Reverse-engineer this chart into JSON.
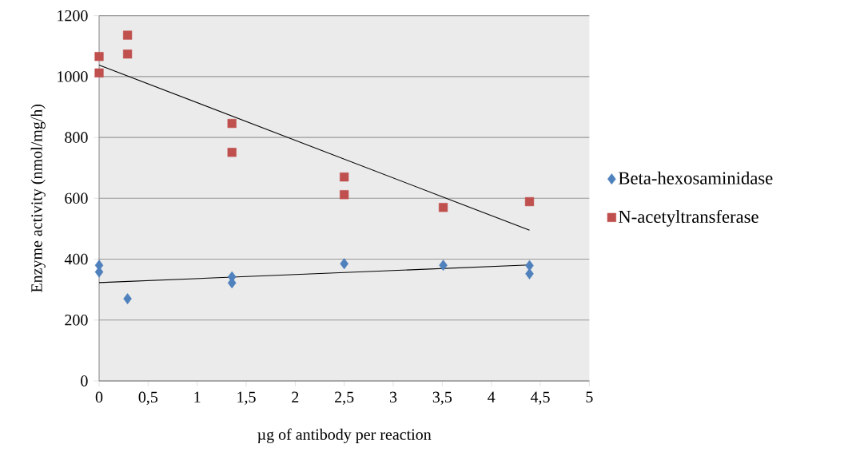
{
  "chart_data": {
    "type": "scatter",
    "xlabel": "µg of antibody per reaction",
    "ylabel": "Enzyme activity (nmol/mg/h)",
    "xlim": [
      0,
      5
    ],
    "ylim": [
      0,
      1200
    ],
    "xticks": [
      0,
      {
        "value": 0.5,
        "label": "0,5"
      },
      1,
      {
        "value": 1.5,
        "label": "1,5"
      },
      2,
      {
        "value": 2.5,
        "label": "2,5"
      },
      3,
      {
        "value": 3.5,
        "label": "3,5"
      },
      4,
      {
        "value": 4.5,
        "label": "4,5"
      },
      5
    ],
    "yticks": [
      0,
      200,
      400,
      600,
      800,
      1000,
      1200
    ],
    "grid": "y",
    "legend": "right",
    "series": [
      {
        "name": "Beta-hexosaminidase",
        "color": "#4f81bd",
        "marker": "diamond",
        "x": [
          0,
          0,
          0.29,
          1.355,
          1.355,
          2.5,
          3.51,
          4.39,
          4.39
        ],
        "values": [
          380,
          358,
          270,
          342,
          322,
          385,
          380,
          379,
          352
        ]
      },
      {
        "name": "N-acetyltransferase",
        "color": "#c0504d",
        "marker": "square",
        "x": [
          0,
          0,
          0.29,
          0.29,
          1.355,
          1.355,
          2.5,
          2.5,
          3.51,
          4.39
        ],
        "values": [
          1066,
          1012,
          1136,
          1074,
          846,
          751,
          670,
          612,
          570,
          589
        ]
      },
      {
        "type": "line",
        "color": "#000000",
        "x": [
          0,
          4.39
        ],
        "values": [
          323,
          381
        ]
      },
      {
        "type": "line",
        "color": "#000000",
        "x": [
          0,
          4.39
        ],
        "values": [
          1038,
          495
        ]
      }
    ]
  }
}
